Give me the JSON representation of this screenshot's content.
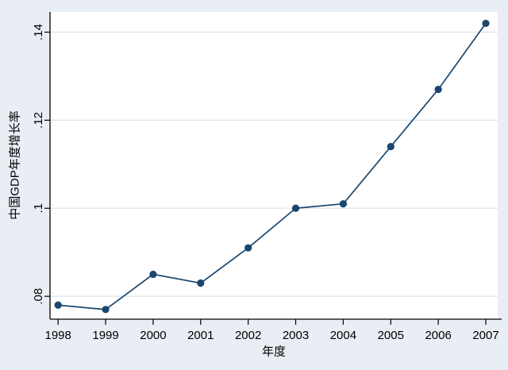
{
  "figure": {
    "background_color": "#e8eef4",
    "plot_background": "#ffffff",
    "grid_color": "#dde8f0",
    "axis_color": "#000000",
    "tick_label_color": "#000000",
    "line_color": "#1a476f",
    "marker_color": "#1a476f"
  },
  "chart_data": {
    "type": "line",
    "title": "",
    "xlabel": "年度",
    "ylabel": "中国GDP年度增长率",
    "x": [
      1998,
      1999,
      2000,
      2001,
      2002,
      2003,
      2004,
      2005,
      2006,
      2007
    ],
    "values": [
      0.078,
      0.077,
      0.085,
      0.083,
      0.091,
      0.1,
      0.101,
      0.114,
      0.127,
      0.142
    ],
    "series": [
      {
        "name": "中国GDP年度增长率",
        "values": [
          0.078,
          0.077,
          0.085,
          0.083,
          0.091,
          0.1,
          0.101,
          0.114,
          0.127,
          0.142
        ]
      }
    ],
    "xticks": [
      "1998",
      "1999",
      "2000",
      "2001",
      "2002",
      "2003",
      "2004",
      "2005",
      "2006",
      "2007"
    ],
    "xtick_values": [
      1998,
      1999,
      2000,
      2001,
      2002,
      2003,
      2004,
      2005,
      2006,
      2007
    ],
    "yticks": [
      ".08",
      ".1",
      ".12",
      ".14"
    ],
    "ytick_values": [
      0.08,
      0.1,
      0.12,
      0.14
    ],
    "xlim": [
      1997.83,
      2007.25
    ],
    "ylim": [
      0.0748,
      0.1446
    ],
    "grid": true,
    "legend": "none",
    "marker": "circle",
    "y_tick_label_rotation": -90
  }
}
